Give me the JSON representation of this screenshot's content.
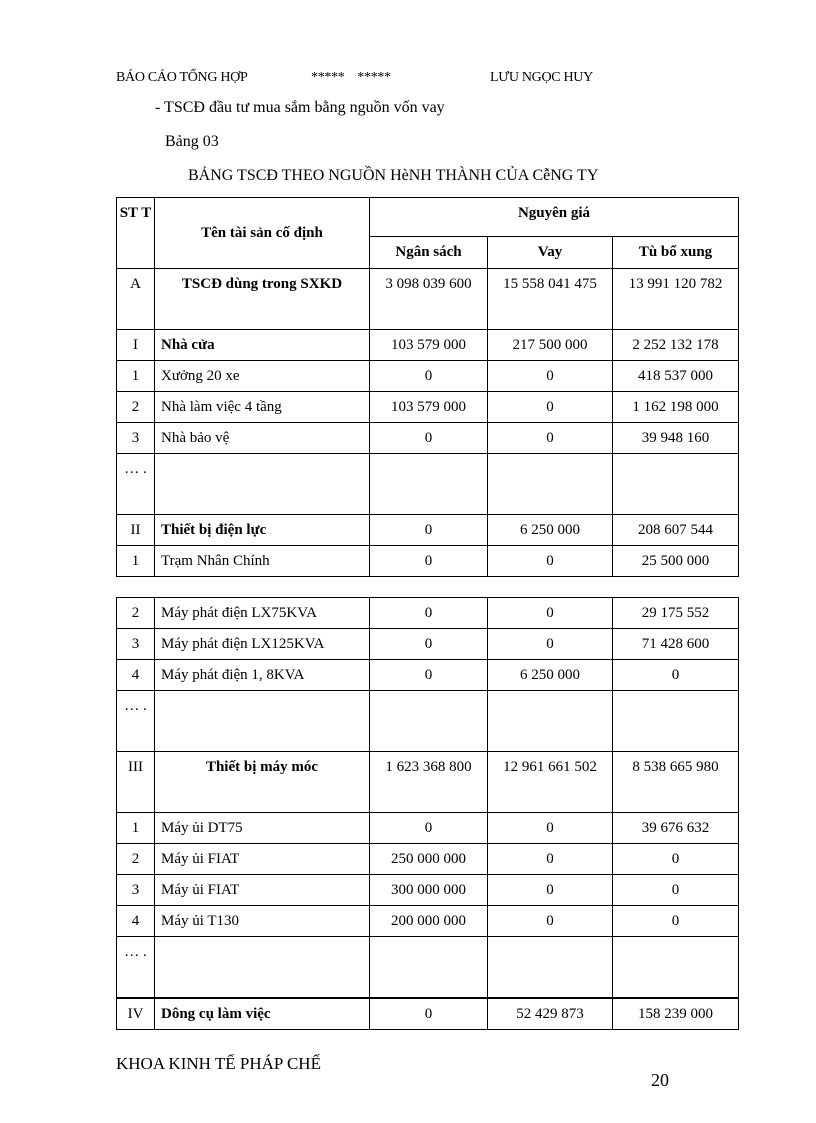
{
  "header": {
    "left": "BÁO CÁO TỔNG HỢP",
    "middle": "*****    *****",
    "right": "LƯU NGỌC HUY"
  },
  "intro": "- TSCĐ đầu tư mua sắm bằng nguồn vốn vay",
  "table_label": "Bảng 03",
  "table_title": "BẢNG TSCĐ THEO NGUỒN HèNH THÀNH  CỦA CễNG TY",
  "columns": {
    "stt": "ST T",
    "name": "Tên tài sản cố định",
    "group": "Nguyên giá",
    "ngan_sach": "Ngân sách",
    "vay": "Vay",
    "tu_bo_xung": "Tù bổ xung"
  },
  "table1_rows": [
    {
      "stt": "A",
      "name": "TSCĐ  dùng trong SXKD",
      "ns": "3 098 039 600",
      "vay": "15 558 041 475",
      "tbx": "13 991 120 782",
      "bold": true,
      "center": true
    },
    {
      "stt": "I",
      "name": "Nhà cửa",
      "ns": "103 579 000",
      "vay": "217 500 000",
      "tbx": "2 252 132 178",
      "bold": true
    },
    {
      "stt": "1",
      "name": "Xưởng 20 xe",
      "ns": "0",
      "vay": "0",
      "tbx": "418 537 000"
    },
    {
      "stt": "2",
      "name": "Nhà làm việc 4 tầng",
      "ns": "103 579 000",
      "vay": "0",
      "tbx": "1 162 198 000"
    },
    {
      "stt": "3",
      "name": "Nhà bảo vệ",
      "ns": "0",
      "vay": "0",
      "tbx": "39 948 160"
    },
    {
      "stt": "… .",
      "name": "",
      "ns": "",
      "vay": "",
      "tbx": ""
    },
    {
      "stt": "II",
      "name": "Thiết bị điện lực",
      "ns": "0",
      "vay": "6 250 000",
      "tbx": "208 607 544",
      "bold": true
    },
    {
      "stt": "1",
      "name": "Trạm Nhân Chính",
      "ns": "0",
      "vay": "0",
      "tbx": "25 500 000"
    }
  ],
  "table2_rows": [
    {
      "stt": "2",
      "name": "Máy phát điện LX75KVA",
      "ns": "0",
      "vay": "0",
      "tbx": "29 175 552"
    },
    {
      "stt": "3",
      "name": "Máy phát điện LX125KVA",
      "ns": "0",
      "vay": "0",
      "tbx": "71 428 600"
    },
    {
      "stt": "4",
      "name": "Máy phát điện 1, 8KVA",
      "ns": "0",
      "vay": "6 250 000",
      "tbx": "0"
    },
    {
      "stt": "… .",
      "name": "",
      "ns": "",
      "vay": "",
      "tbx": ""
    },
    {
      "stt": "III",
      "name": "Thiết bị máy móc",
      "ns": "1 623 368 800",
      "vay": "12 961 661 502",
      "tbx": "8 538 665 980",
      "bold": true,
      "center": true
    },
    {
      "stt": "1",
      "name": "Máy ủi DT75",
      "ns": "0",
      "vay": "0",
      "tbx": "39 676 632"
    },
    {
      "stt": "2",
      "name": "Máy ủi FIAT",
      "ns": "250 000 000",
      "vay": "0",
      "tbx": "0"
    },
    {
      "stt": "3",
      "name": "Máy ủi FIAT",
      "ns": "300 000 000",
      "vay": "0",
      "tbx": "0"
    },
    {
      "stt": "4",
      "name": "Máy ủi T130",
      "ns": "200 000 000",
      "vay": "0",
      "tbx": "0"
    },
    {
      "stt": "… .",
      "name": "",
      "ns": "",
      "vay": "",
      "tbx": ""
    },
    {
      "stt": "IV",
      "name": "Dông cụ làm việc",
      "ns": "0",
      "vay": "52 429 873",
      "tbx": "158 239 000",
      "bold": true,
      "thick": true
    }
  ],
  "footer": {
    "left": "KHOA KINH TẾ PHÁP CHẾ",
    "page_number": "20"
  }
}
